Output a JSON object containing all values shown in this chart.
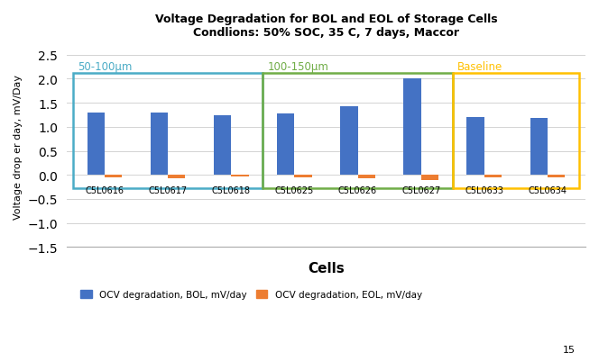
{
  "title1": "Voltage Degradation for BOL and EOL of Storage Cells",
  "title2": "Condlions: 50% SOC, 35 C, 7 days, Maccor",
  "xlabel": "Cells",
  "ylabel": "Voltage drop er day, mV/Day",
  "categories": [
    "C5L0616",
    "C5L0617",
    "C5L0618",
    "C5L0625",
    "C5L0626",
    "C5L0627",
    "C5L0633",
    "C5L0634"
  ],
  "bol_values": [
    1.3,
    1.3,
    1.24,
    1.28,
    1.43,
    2.0,
    1.21,
    1.18
  ],
  "eol_values": [
    -0.05,
    -0.07,
    -0.03,
    -0.05,
    -0.08,
    -0.1,
    -0.06,
    -0.06
  ],
  "bol_color": "#4472C4",
  "eol_color": "#ED7D31",
  "ylim": [
    -1.5,
    2.7
  ],
  "yticks": [
    -1.5,
    -1.0,
    -0.5,
    0.0,
    0.5,
    1.0,
    1.5,
    2.0,
    2.5
  ],
  "groups": [
    {
      "label": "50-100μm",
      "start": 0,
      "end": 3,
      "color": "#4BACC6",
      "box_color": "#4BACC6"
    },
    {
      "label": "100-150μm",
      "start": 3,
      "end": 6,
      "color": "#70AD47",
      "box_color": "#70AD47"
    },
    {
      "label": "Baseline",
      "start": 6,
      "end": 8,
      "color": "#FFC000",
      "box_color": "#FFC000"
    }
  ],
  "legend1": "OCV degradation, BOL, mV/day",
  "legend2": "OCV degradation, EOL, mV/day",
  "footnote": "15",
  "bar_width": 0.55
}
